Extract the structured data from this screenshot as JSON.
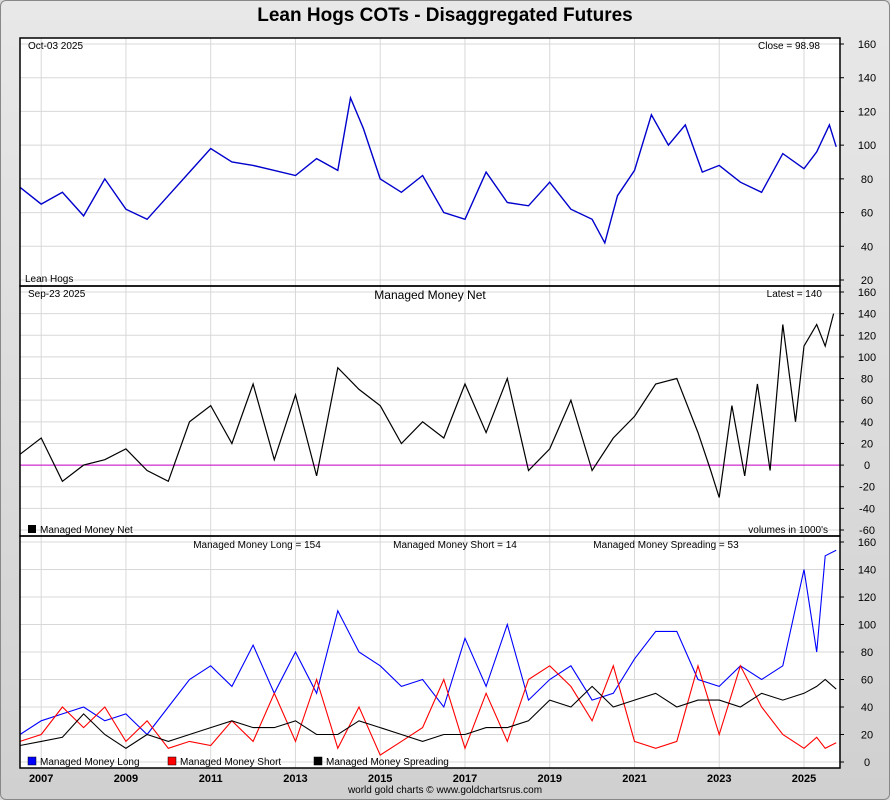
{
  "page": {
    "title": "Lean Hogs COTs - Disaggregated Futures",
    "footer": "world gold charts © www.goldchartsrus.com"
  },
  "colors": {
    "price": "#0000cc",
    "net": "#000000",
    "zero_line": "#cc00cc",
    "long": "#0000ff",
    "short": "#ff0000",
    "spreading": "#000000",
    "grid": "#d8d8d8"
  },
  "chart_data": [
    {
      "type": "line",
      "panel": "price",
      "date_label": "Oct-03  2025",
      "value_label": "Close = 98.98",
      "legend": "Lean Hogs",
      "ylim": [
        20,
        160
      ],
      "yticks": [
        20,
        40,
        60,
        80,
        100,
        120,
        140,
        160
      ],
      "x": [
        2006.5,
        2007.0,
        2007.5,
        2008.0,
        2008.5,
        2009.0,
        2009.5,
        2010.0,
        2010.5,
        2011.0,
        2011.5,
        2012.0,
        2012.5,
        2013.0,
        2013.5,
        2014.0,
        2014.3,
        2014.6,
        2015.0,
        2015.5,
        2016.0,
        2016.5,
        2017.0,
        2017.5,
        2018.0,
        2018.5,
        2019.0,
        2019.5,
        2020.0,
        2020.3,
        2020.6,
        2021.0,
        2021.4,
        2021.8,
        2022.2,
        2022.6,
        2023.0,
        2023.5,
        2024.0,
        2024.5,
        2025.0,
        2025.3,
        2025.6,
        2025.76
      ],
      "y": [
        75,
        65,
        72,
        58,
        80,
        62,
        56,
        70,
        84,
        98,
        90,
        88,
        85,
        82,
        92,
        85,
        128,
        110,
        80,
        72,
        82,
        60,
        56,
        84,
        66,
        64,
        78,
        62,
        56,
        42,
        70,
        85,
        118,
        100,
        112,
        84,
        88,
        78,
        72,
        95,
        86,
        96,
        112,
        99
      ]
    },
    {
      "type": "line",
      "panel": "net",
      "title": "Managed Money Net",
      "date_label": "Sep-23  2025",
      "value_label": "Latest = 140",
      "legend": "Managed Money Net",
      "units": "volumes in 1000's",
      "ylim": [
        -60,
        160
      ],
      "yticks": [
        -60,
        -40,
        -20,
        0,
        20,
        40,
        60,
        80,
        100,
        120,
        140,
        160
      ],
      "x": [
        2006.5,
        2007.0,
        2007.5,
        2008.0,
        2008.5,
        2009.0,
        2009.5,
        2010.0,
        2010.5,
        2011.0,
        2011.5,
        2012.0,
        2012.5,
        2013.0,
        2013.5,
        2014.0,
        2014.5,
        2015.0,
        2015.5,
        2016.0,
        2016.5,
        2017.0,
        2017.5,
        2018.0,
        2018.5,
        2019.0,
        2019.5,
        2020.0,
        2020.5,
        2021.0,
        2021.5,
        2022.0,
        2022.5,
        2022.8,
        2023.0,
        2023.3,
        2023.6,
        2023.9,
        2024.2,
        2024.5,
        2024.8,
        2025.0,
        2025.3,
        2025.5,
        2025.7
      ],
      "y": [
        10,
        25,
        -15,
        0,
        5,
        15,
        -5,
        -15,
        40,
        55,
        20,
        75,
        5,
        65,
        -10,
        90,
        70,
        55,
        20,
        40,
        25,
        75,
        30,
        80,
        -5,
        15,
        60,
        -5,
        25,
        45,
        75,
        80,
        30,
        -5,
        -30,
        55,
        -10,
        75,
        -5,
        130,
        40,
        110,
        130,
        110,
        140
      ]
    },
    {
      "type": "line",
      "panel": "positions",
      "value_labels": [
        "Managed Money Long = 154",
        "Managed Money Short = 14",
        "Managed Money Spreading = 53"
      ],
      "legend": [
        "Managed Money Long",
        "Managed Money Short",
        "Managed Money Spreading"
      ],
      "ylim": [
        0,
        160
      ],
      "yticks": [
        0,
        20,
        40,
        60,
        80,
        100,
        120,
        140,
        160
      ],
      "x": [
        2006.5,
        2007.0,
        2007.5,
        2008.0,
        2008.5,
        2009.0,
        2009.5,
        2010.0,
        2010.5,
        2011.0,
        2011.5,
        2012.0,
        2012.5,
        2013.0,
        2013.5,
        2014.0,
        2014.5,
        2015.0,
        2015.5,
        2016.0,
        2016.5,
        2017.0,
        2017.5,
        2018.0,
        2018.5,
        2019.0,
        2019.5,
        2020.0,
        2020.5,
        2021.0,
        2021.5,
        2022.0,
        2022.5,
        2023.0,
        2023.5,
        2024.0,
        2024.5,
        2025.0,
        2025.3,
        2025.5,
        2025.76
      ],
      "series": [
        {
          "name": "Managed Money Long",
          "color_key": "long",
          "values": [
            20,
            30,
            35,
            40,
            30,
            35,
            20,
            40,
            60,
            70,
            55,
            85,
            50,
            80,
            50,
            110,
            80,
            70,
            55,
            60,
            40,
            90,
            55,
            100,
            45,
            60,
            70,
            45,
            50,
            75,
            95,
            95,
            60,
            55,
            70,
            60,
            70,
            140,
            80,
            150,
            154
          ]
        },
        {
          "name": "Managed Money Short",
          "color_key": "short",
          "values": [
            15,
            20,
            40,
            25,
            40,
            15,
            30,
            10,
            15,
            12,
            30,
            15,
            50,
            15,
            60,
            10,
            40,
            5,
            15,
            25,
            60,
            10,
            50,
            15,
            60,
            70,
            55,
            30,
            70,
            15,
            10,
            15,
            70,
            20,
            70,
            40,
            20,
            10,
            18,
            10,
            14
          ]
        },
        {
          "name": "Managed Money Spreading",
          "color_key": "spreading",
          "values": [
            12,
            15,
            18,
            35,
            20,
            10,
            20,
            15,
            20,
            25,
            30,
            25,
            25,
            30,
            20,
            20,
            30,
            25,
            20,
            15,
            20,
            20,
            25,
            25,
            30,
            45,
            40,
            55,
            40,
            45,
            50,
            40,
            45,
            45,
            40,
            50,
            45,
            50,
            55,
            60,
            53
          ]
        }
      ]
    }
  ],
  "xaxis": {
    "min": 2006.5,
    "max": 2025.85,
    "tick_labels": [
      "2007",
      "2009",
      "2011",
      "2013",
      "2015",
      "2017",
      "2019",
      "2021",
      "2023",
      "2025"
    ],
    "tick_values": [
      2007,
      2009,
      2011,
      2013,
      2015,
      2017,
      2019,
      2021,
      2023,
      2025
    ]
  }
}
